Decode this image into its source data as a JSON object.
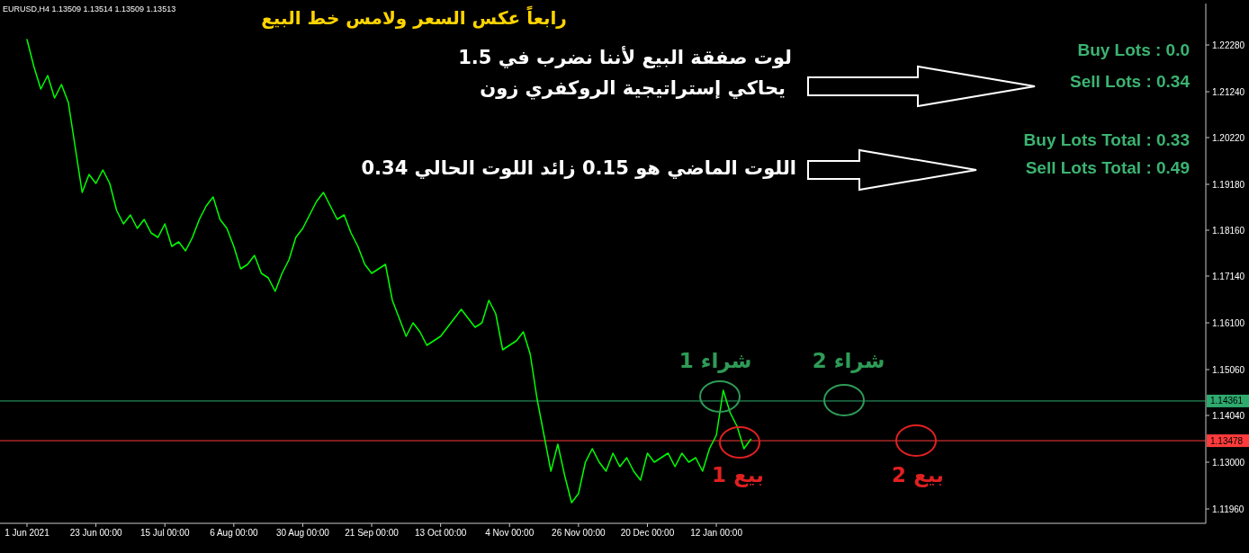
{
  "chart_data": {
    "type": "line",
    "title": "رابعاً عكس السعر ولامس خط البيع",
    "categories": [
      "1 Jun 2021",
      null,
      null,
      null,
      null,
      null,
      null,
      null,
      null,
      null,
      "23 Jun 00:00",
      null,
      null,
      null,
      null,
      null,
      null,
      null,
      null,
      null,
      "15 Jul 00:00",
      null,
      null,
      null,
      null,
      null,
      null,
      null,
      null,
      null,
      "6 Aug 00:00",
      null,
      null,
      null,
      null,
      null,
      null,
      null,
      null,
      null,
      "30 Aug 00:00",
      null,
      null,
      null,
      null,
      null,
      null,
      null,
      null,
      null,
      "21 Sep 00:00",
      null,
      null,
      null,
      null,
      null,
      null,
      null,
      null,
      null,
      "13 Oct 00:00",
      null,
      null,
      null,
      null,
      null,
      null,
      null,
      null,
      null,
      "4 Nov 00:00",
      null,
      null,
      null,
      null,
      null,
      null,
      null,
      null,
      null,
      "26 Nov 00:00",
      null,
      null,
      null,
      null,
      null,
      null,
      null,
      null,
      null,
      "20 Dec 00:00",
      null,
      null,
      null,
      null,
      null,
      null,
      null,
      null,
      null,
      "12 Jan 00:00",
      null,
      null,
      null,
      null,
      null,
      null,
      null,
      null,
      null,
      null,
      null,
      null,
      null,
      null,
      null,
      null,
      null,
      null,
      null,
      null,
      null,
      null,
      null,
      null,
      null,
      null,
      null,
      null,
      null,
      null,
      null,
      null,
      null,
      null,
      null,
      null,
      null,
      null,
      null,
      null,
      null,
      null,
      null,
      null,
      null,
      null,
      null,
      null,
      null,
      null,
      null,
      null,
      null,
      null,
      null,
      null,
      null,
      null,
      null,
      null,
      null,
      null,
      null,
      null,
      null,
      null,
      null,
      null,
      null,
      null,
      null
    ],
    "series": [
      {
        "color": "#00ff00",
        "values": [
          1.224,
          1.218,
          1.213,
          1.216,
          1.211,
          1.214,
          1.21,
          1.2,
          1.19,
          1.194,
          1.192,
          1.195,
          1.192,
          1.186,
          1.183,
          1.185,
          1.182,
          1.184,
          1.181,
          1.18,
          1.183,
          1.178,
          1.179,
          1.177,
          1.18,
          1.184,
          1.187,
          1.189,
          1.184,
          1.182,
          1.178,
          1.173,
          1.174,
          1.176,
          1.172,
          1.171,
          1.168,
          1.172,
          1.175,
          1.18,
          1.182,
          1.185,
          1.188,
          1.19,
          1.187,
          1.184,
          1.185,
          1.181,
          1.178,
          1.174,
          1.172,
          1.173,
          1.174,
          1.166,
          1.162,
          1.158,
          1.161,
          1.159,
          1.156,
          1.157,
          1.158,
          1.16,
          1.162,
          1.164,
          1.162,
          1.16,
          1.161,
          1.166,
          1.163,
          1.155,
          1.156,
          1.157,
          1.159,
          1.154,
          1.144,
          1.136,
          1.128,
          1.134,
          1.127,
          1.121,
          1.123,
          1.13,
          1.133,
          1.13,
          1.128,
          1.132,
          1.129,
          1.131,
          1.128,
          1.126,
          1.132,
          1.13,
          1.131,
          1.132,
          1.129,
          1.132,
          1.13,
          1.131,
          1.128,
          1.133,
          1.136,
          1.146,
          1.141,
          1.138,
          1.133,
          1.1351,
          null,
          null,
          null,
          null,
          null,
          null,
          null,
          null,
          null,
          null,
          null,
          null,
          null,
          null,
          null,
          null,
          null,
          null,
          null,
          null,
          null,
          null,
          null,
          null,
          null,
          null,
          null,
          null,
          null,
          null,
          null,
          null,
          null,
          null,
          null,
          null,
          null,
          null,
          null,
          null,
          null,
          null,
          null,
          null,
          null,
          null,
          null,
          null,
          null,
          null,
          null,
          null,
          null,
          null,
          null,
          null,
          null,
          null,
          null,
          null,
          null,
          null,
          null,
          null,
          null,
          null
        ]
      }
    ],
    "ylim": [
      1.1164,
      1.232
    ],
    "yticks": [
      {
        "value": 1.1196,
        "label": "1.11960"
      },
      {
        "value": 1.13,
        "label": "1.13000"
      },
      {
        "value": 1.1404,
        "label": "1.14040"
      },
      {
        "value": 1.1506,
        "label": "1.15060"
      },
      {
        "value": 1.161,
        "label": "1.16100"
      },
      {
        "value": 1.1714,
        "label": "1.17140"
      },
      {
        "value": 1.1816,
        "label": "1.18160"
      },
      {
        "value": 1.1918,
        "label": "1.19180"
      },
      {
        "value": 1.2022,
        "label": "1.20220"
      },
      {
        "value": 1.2124,
        "label": "1.21240"
      },
      {
        "value": 1.2228,
        "label": "1.22280"
      }
    ],
    "ref_lines": [
      {
        "axis": "y",
        "value": 1.14361,
        "label": "1.14361",
        "color": "#2eaa6e"
      },
      {
        "axis": "y",
        "value": 1.13478,
        "label": "1.13478",
        "color": "#ff3b3b"
      }
    ],
    "annotations": [
      "EURUSD,H4 1.13509 1.13514 1.13509 1.13513",
      "لوت صفقة البيع لأننا نضرب في 1.5",
      "يحاكي إستراتيجية الروكفري زون",
      "اللوت الماضي هو 0.15 زائد اللوت الحالي 0.34",
      "Buy Lots : 0.0",
      "Sell Lots : 0.34",
      "Buy Lots Total : 0.33",
      "Sell Lots Total : 0.49",
      "شراء 1",
      "شراء 2",
      "بيع 1",
      "بيع 2"
    ],
    "grid": false
  }
}
